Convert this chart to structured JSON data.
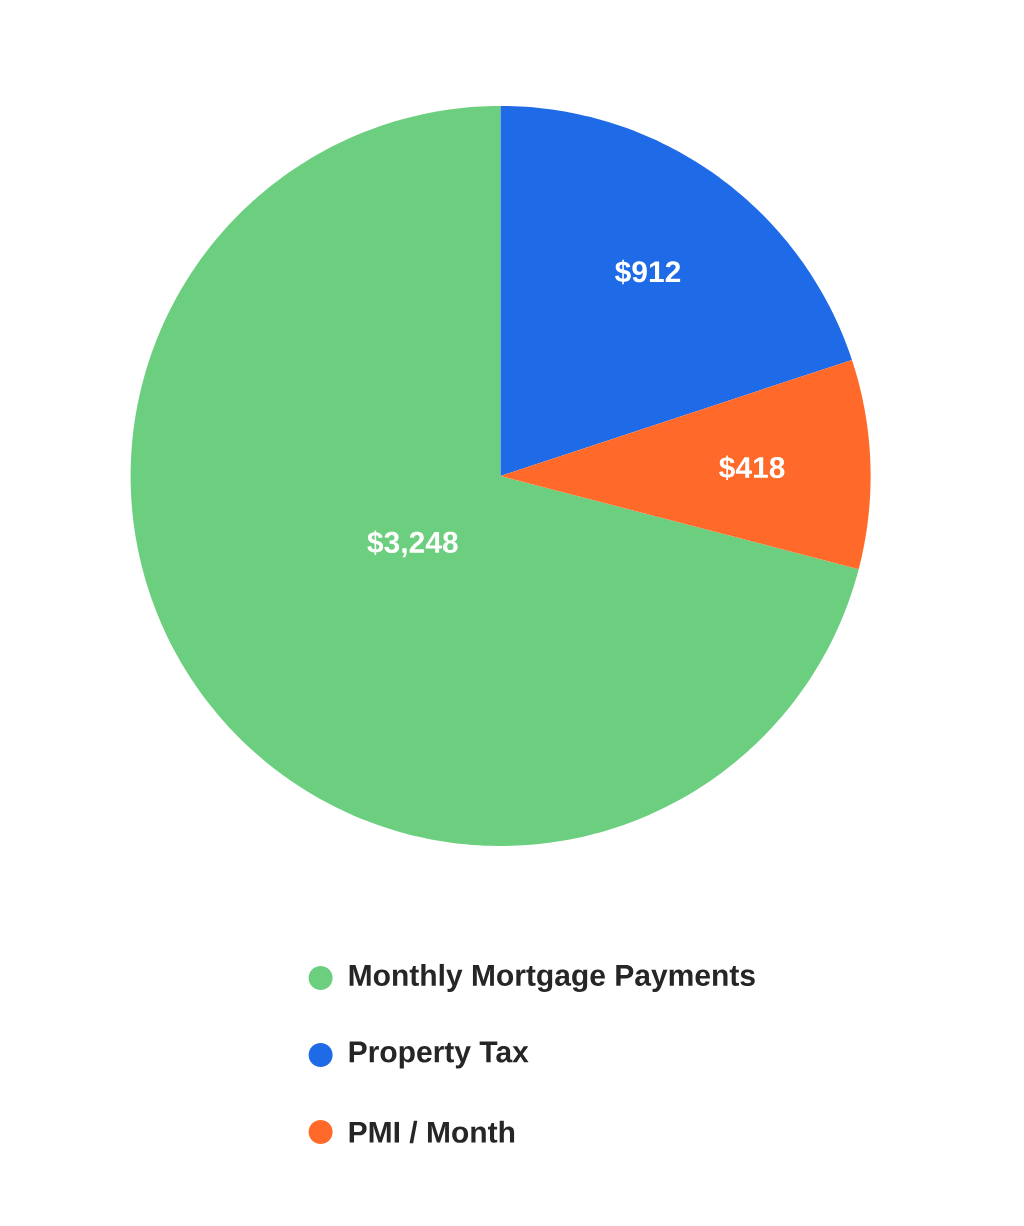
{
  "chart_data": {
    "type": "pie",
    "categories": [
      "Monthly Mortgage Payments",
      "Property Tax",
      "PMI / Month"
    ],
    "values": [
      3248,
      912,
      418
    ],
    "colors": [
      "#6ccf7f",
      "#1f6ae6",
      "#ff6a2a"
    ],
    "value_labels": [
      "$3,248",
      "$912",
      "$418"
    ],
    "legend": "bottom"
  }
}
